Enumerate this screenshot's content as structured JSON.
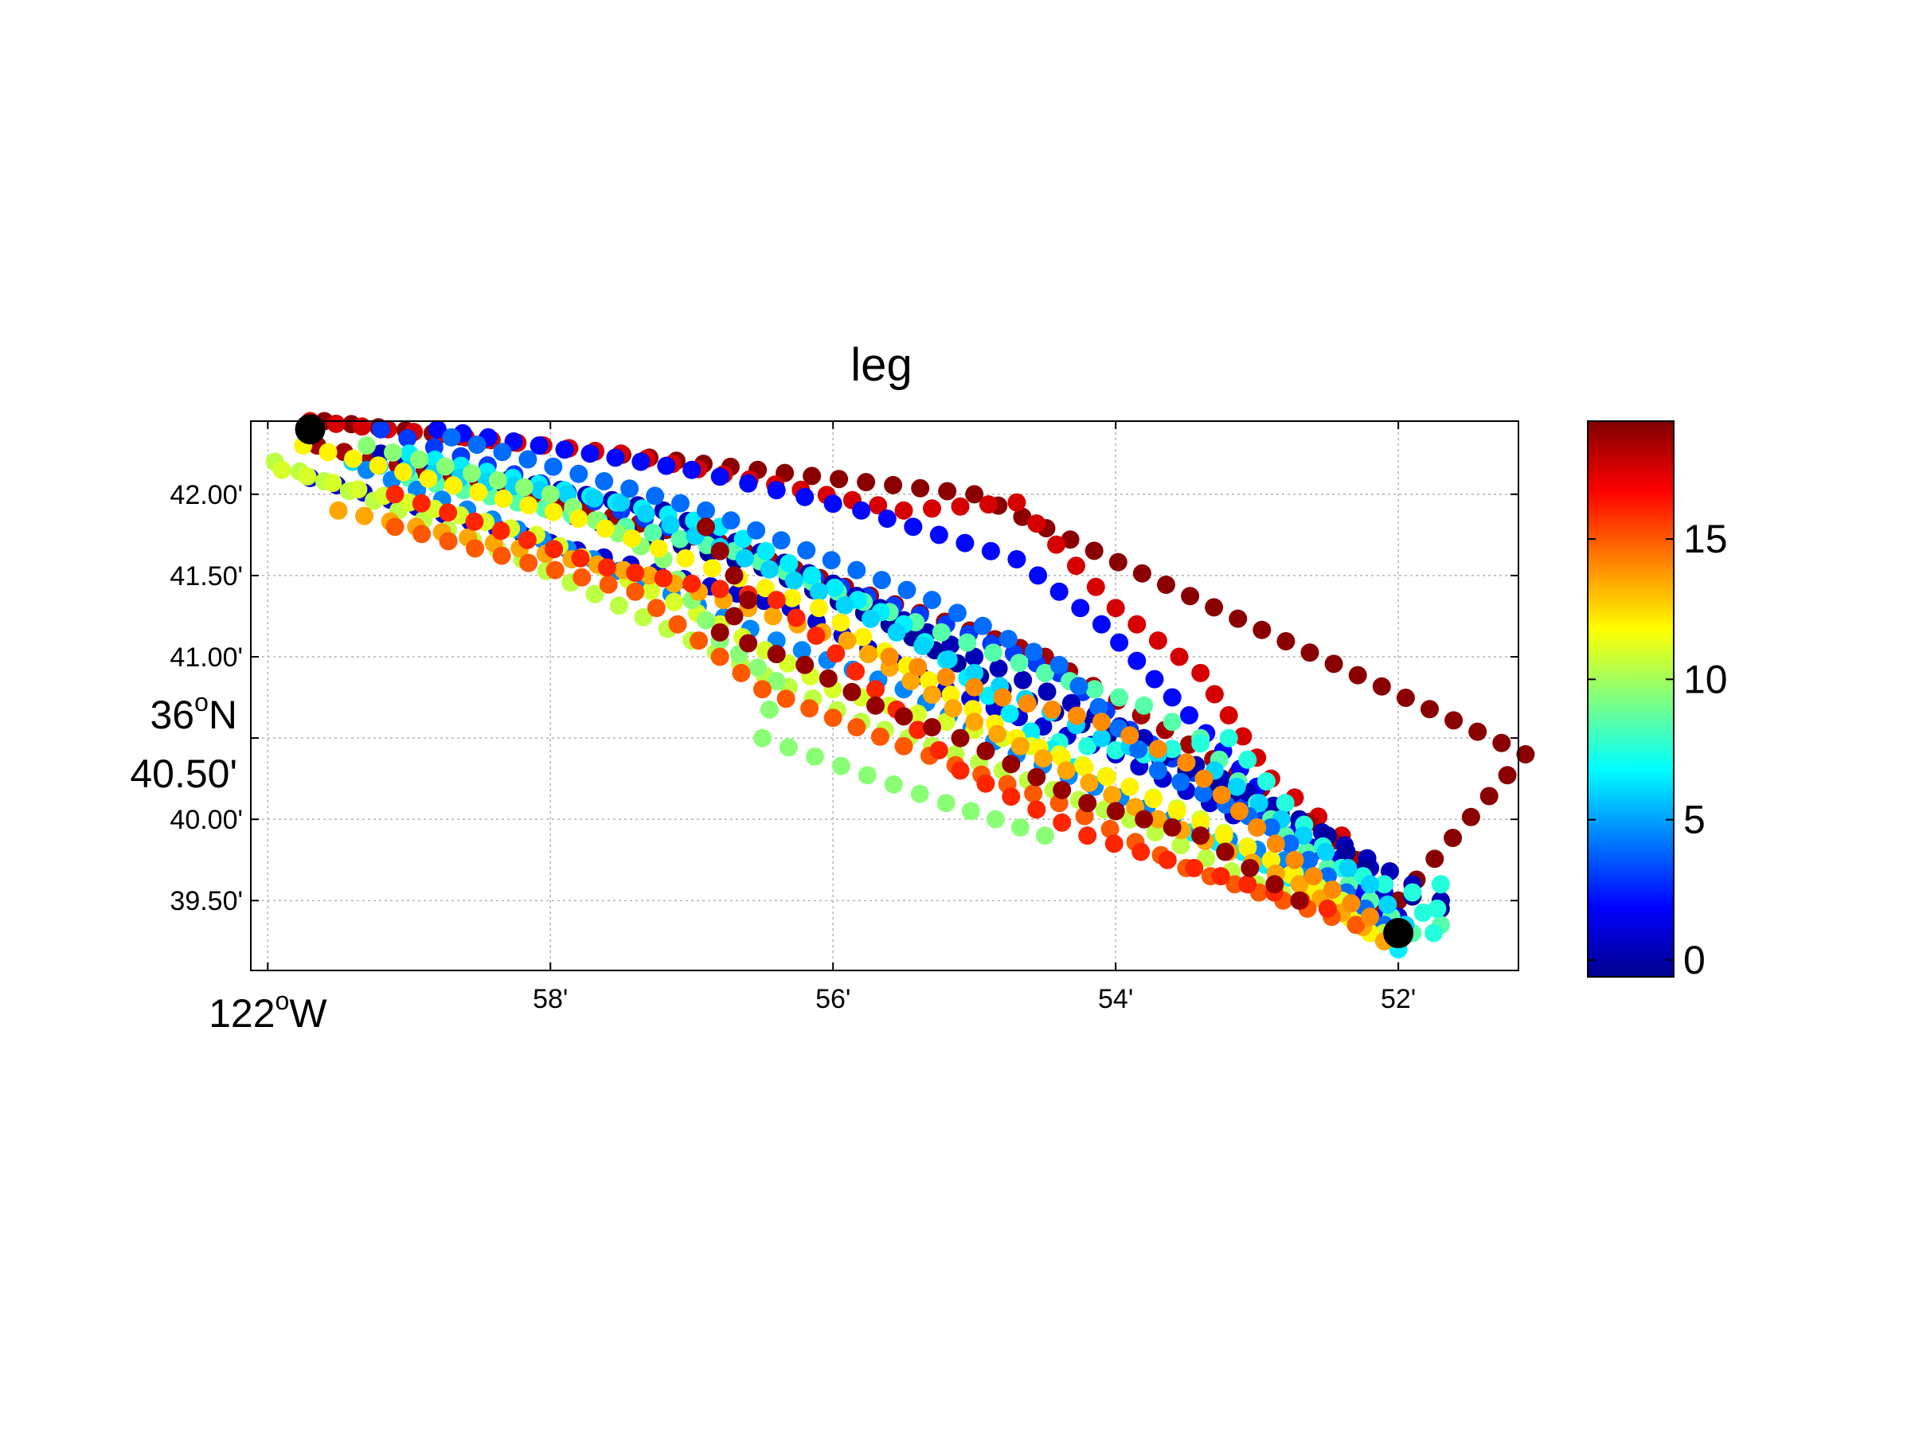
{
  "chart_data": {
    "type": "scatter",
    "title": "leg",
    "xlabel": "",
    "ylabel": "",
    "x_units": "longitude minutes west of 122°W",
    "y_units": "latitude minutes north of 36°N",
    "xlim": [
      -0.12,
      8.85
    ],
    "ylim": [
      39.07,
      42.45
    ],
    "grid": true,
    "x_ticks": [
      {
        "value": 0,
        "label": "122°W",
        "major": true,
        "deg": "122",
        "hem": "W"
      },
      {
        "value": 2,
        "label": "58'"
      },
      {
        "value": 4,
        "label": "56'"
      },
      {
        "value": 6,
        "label": "54'"
      },
      {
        "value": 8,
        "label": "52'"
      }
    ],
    "y_ticks": [
      {
        "value": 42.0,
        "label": "42.00'"
      },
      {
        "value": 41.5,
        "label": "41.50'"
      },
      {
        "value": 41.0,
        "label": "41.00'"
      },
      {
        "value": 40.5,
        "label": "40.50'",
        "major": true,
        "deg": "36",
        "hem": "N"
      },
      {
        "value": 40.0,
        "label": "40.00'"
      },
      {
        "value": 39.5,
        "label": "39.50'"
      }
    ],
    "colorbar": {
      "range": [
        -0.6,
        19.2
      ],
      "ticks": [
        0,
        5,
        10,
        15
      ],
      "tick_labels": [
        "0",
        "5",
        "10",
        "15"
      ],
      "colormap": "jet",
      "placement": "right"
    },
    "markers": [
      {
        "name": "start",
        "x": 0.3,
        "y": 42.4,
        "color": "#000000"
      },
      {
        "name": "end",
        "x": 8.0,
        "y": 39.3,
        "color": "#000000"
      }
    ],
    "tracks": [
      {
        "c": 19.0,
        "points": [
          [
            0.4,
            42.45
          ],
          [
            5.0,
            42.0
          ],
          [
            8.9,
            40.4
          ],
          [
            8.0,
            39.5
          ]
        ]
      },
      {
        "c": 17.5,
        "points": [
          [
            0.3,
            42.45
          ],
          [
            2.5,
            42.25
          ],
          [
            4.5,
            41.9
          ],
          [
            5.3,
            41.95
          ],
          [
            6.0,
            41.3
          ],
          [
            6.6,
            40.9
          ],
          [
            7.1,
            40.25
          ],
          [
            7.6,
            39.9
          ],
          [
            7.9,
            39.6
          ]
        ]
      },
      {
        "c": 18.5,
        "points": [
          [
            0.35,
            42.3
          ],
          [
            3.2,
            41.7
          ],
          [
            5.5,
            41.0
          ],
          [
            7.2,
            40.1
          ],
          [
            7.7,
            39.75
          ],
          [
            7.8,
            39.45
          ]
        ]
      },
      {
        "c": 3.0,
        "points": [
          [
            0.8,
            42.4
          ],
          [
            2.5,
            41.9
          ],
          [
            3.5,
            41.6
          ],
          [
            4.8,
            41.2
          ],
          [
            5.6,
            40.9
          ],
          [
            6.1,
            40.55
          ],
          [
            6.7,
            40.2
          ],
          [
            7.4,
            39.8
          ],
          [
            7.8,
            39.5
          ]
        ]
      },
      {
        "c": 2.0,
        "points": [
          [
            1.2,
            42.4
          ],
          [
            3.0,
            42.15
          ],
          [
            4.2,
            41.9
          ],
          [
            5.3,
            41.6
          ],
          [
            5.9,
            41.2
          ],
          [
            6.4,
            40.75
          ],
          [
            7.0,
            40.2
          ],
          [
            7.6,
            39.7
          ],
          [
            7.9,
            39.4
          ]
        ]
      },
      {
        "c": 1.0,
        "points": [
          [
            0.3,
            42.1
          ],
          [
            2.0,
            41.7
          ],
          [
            3.7,
            41.3
          ],
          [
            4.8,
            40.8
          ],
          [
            6.0,
            40.4
          ],
          [
            7.0,
            39.95
          ],
          [
            7.8,
            39.7
          ],
          [
            8.0,
            39.4
          ]
        ]
      },
      {
        "c": 0.5,
        "points": [
          [
            0.8,
            42.25
          ],
          [
            2.8,
            41.9
          ],
          [
            4.0,
            41.45
          ],
          [
            5.0,
            41.0
          ],
          [
            6.2,
            40.5
          ],
          [
            7.3,
            40.0
          ],
          [
            8.1,
            39.6
          ],
          [
            8.3,
            39.5
          ]
        ]
      },
      {
        "c": 0.0,
        "points": [
          [
            1.6,
            42.0
          ],
          [
            3.5,
            41.55
          ],
          [
            4.4,
            41.2
          ],
          [
            5.2,
            40.8
          ],
          [
            6.5,
            40.3
          ],
          [
            7.5,
            39.9
          ],
          [
            7.9,
            39.6
          ],
          [
            8.3,
            39.45
          ]
        ]
      },
      {
        "c": 8.5,
        "points": [
          [
            1.0,
            42.1
          ],
          [
            3.3,
            41.65
          ],
          [
            5.5,
            40.9
          ],
          [
            6.2,
            40.7
          ],
          [
            6.6,
            40.5
          ],
          [
            7.0,
            40.1
          ],
          [
            7.2,
            39.9
          ],
          [
            7.5,
            39.7
          ],
          [
            7.8,
            39.5
          ],
          [
            8.1,
            39.3
          ],
          [
            8.3,
            39.35
          ]
        ]
      },
      {
        "c": 7.5,
        "points": [
          [
            5.4,
            40.5
          ],
          [
            6.2,
            40.4
          ],
          [
            6.8,
            40.5
          ],
          [
            7.2,
            40.1
          ],
          [
            7.6,
            39.7
          ],
          [
            7.9,
            39.6
          ],
          [
            8.1,
            39.55
          ],
          [
            8.25,
            39.3
          ],
          [
            8.3,
            39.6
          ]
        ]
      },
      {
        "c": 6.5,
        "points": [
          [
            1.0,
            42.25
          ],
          [
            3.2,
            41.8
          ],
          [
            4.5,
            41.2
          ],
          [
            6.0,
            40.1
          ],
          [
            6.9,
            39.8
          ],
          [
            7.7,
            39.4
          ],
          [
            8.0,
            39.2
          ]
        ]
      },
      {
        "c": 6.0,
        "points": [
          [
            0.6,
            42.2
          ],
          [
            2.5,
            41.95
          ],
          [
            3.9,
            41.4
          ],
          [
            5.0,
            40.9
          ],
          [
            5.9,
            40.5
          ],
          [
            6.7,
            40.3
          ],
          [
            7.8,
            39.6
          ],
          [
            8.05,
            39.35
          ]
        ]
      },
      {
        "c": 4.5,
        "points": [
          [
            0.7,
            42.15
          ],
          [
            2.3,
            41.6
          ],
          [
            3.6,
            41.1
          ],
          [
            4.5,
            40.8
          ],
          [
            5.3,
            40.4
          ],
          [
            6.4,
            40.0
          ],
          [
            7.2,
            39.75
          ],
          [
            7.9,
            39.3
          ]
        ]
      },
      {
        "c": 4.0,
        "points": [
          [
            1.3,
            42.35
          ],
          [
            3.1,
            41.9
          ],
          [
            4.7,
            41.35
          ],
          [
            5.6,
            40.95
          ],
          [
            6.3,
            40.3
          ],
          [
            7.1,
            39.95
          ],
          [
            7.9,
            39.35
          ]
        ]
      },
      {
        "c": 10.5,
        "points": [
          [
            0.05,
            42.2
          ],
          [
            1.8,
            41.6
          ],
          [
            3.0,
            41.1
          ],
          [
            4.2,
            40.6
          ],
          [
            5.2,
            40.3
          ],
          [
            6.1,
            40.0
          ],
          [
            7.0,
            39.6
          ],
          [
            7.9,
            39.3
          ]
        ]
      },
      {
        "c": 11.0,
        "points": [
          [
            0.1,
            42.15
          ],
          [
            1.9,
            41.75
          ],
          [
            3.2,
            41.2
          ],
          [
            4.0,
            40.8
          ],
          [
            5.0,
            40.55
          ],
          [
            5.6,
            40.4
          ],
          [
            6.6,
            40.0
          ],
          [
            7.6,
            39.5
          ]
        ]
      },
      {
        "c": 9.5,
        "points": [
          [
            0.7,
            42.3
          ],
          [
            2.0,
            42.0
          ],
          [
            2.8,
            41.6
          ],
          [
            3.2,
            41.1
          ],
          [
            3.6,
            40.85
          ],
          [
            3.5,
            40.5
          ],
          [
            4.8,
            40.1
          ],
          [
            5.5,
            39.9
          ]
        ]
      },
      {
        "c": 12.0,
        "points": [
          [
            0.25,
            42.3
          ],
          [
            2.2,
            41.85
          ],
          [
            3.9,
            41.3
          ],
          [
            5.3,
            40.5
          ],
          [
            6.1,
            40.2
          ],
          [
            7.1,
            39.75
          ],
          [
            7.8,
            39.3
          ]
        ]
      },
      {
        "c": 13.5,
        "points": [
          [
            0.5,
            41.9
          ],
          [
            2.7,
            41.5
          ],
          [
            4.1,
            41.1
          ],
          [
            5.0,
            40.6
          ],
          [
            6.3,
            40.0
          ],
          [
            7.3,
            39.6
          ],
          [
            7.9,
            39.25
          ]
        ]
      },
      {
        "c": 15.0,
        "points": [
          [
            0.9,
            41.8
          ],
          [
            2.6,
            41.4
          ],
          [
            3.5,
            40.8
          ],
          [
            4.5,
            40.45
          ],
          [
            5.6,
            40.1
          ],
          [
            6.5,
            39.7
          ],
          [
            7.7,
            39.35
          ]
        ]
      },
      {
        "c": 16.0,
        "points": [
          [
            0.9,
            42.0
          ],
          [
            2.4,
            41.55
          ],
          [
            3.6,
            41.35
          ],
          [
            4.3,
            40.8
          ],
          [
            4.9,
            40.3
          ],
          [
            5.8,
            39.9
          ],
          [
            7.5,
            39.45
          ]
        ]
      },
      {
        "c": 14.0,
        "points": [
          [
            4.4,
            41.0
          ],
          [
            5.2,
            40.75
          ],
          [
            5.9,
            40.6
          ],
          [
            6.5,
            40.35
          ],
          [
            7.0,
            39.95
          ],
          [
            7.4,
            39.65
          ],
          [
            7.8,
            39.4
          ]
        ]
      },
      {
        "c": 18.8,
        "points": [
          [
            3.1,
            41.8
          ],
          [
            3.4,
            41.35
          ],
          [
            3.2,
            41.15
          ],
          [
            3.8,
            40.95
          ],
          [
            4.3,
            40.7
          ],
          [
            4.9,
            40.5
          ],
          [
            5.8,
            40.1
          ],
          [
            6.6,
            39.9
          ],
          [
            7.3,
            39.5
          ]
        ]
      }
    ]
  }
}
